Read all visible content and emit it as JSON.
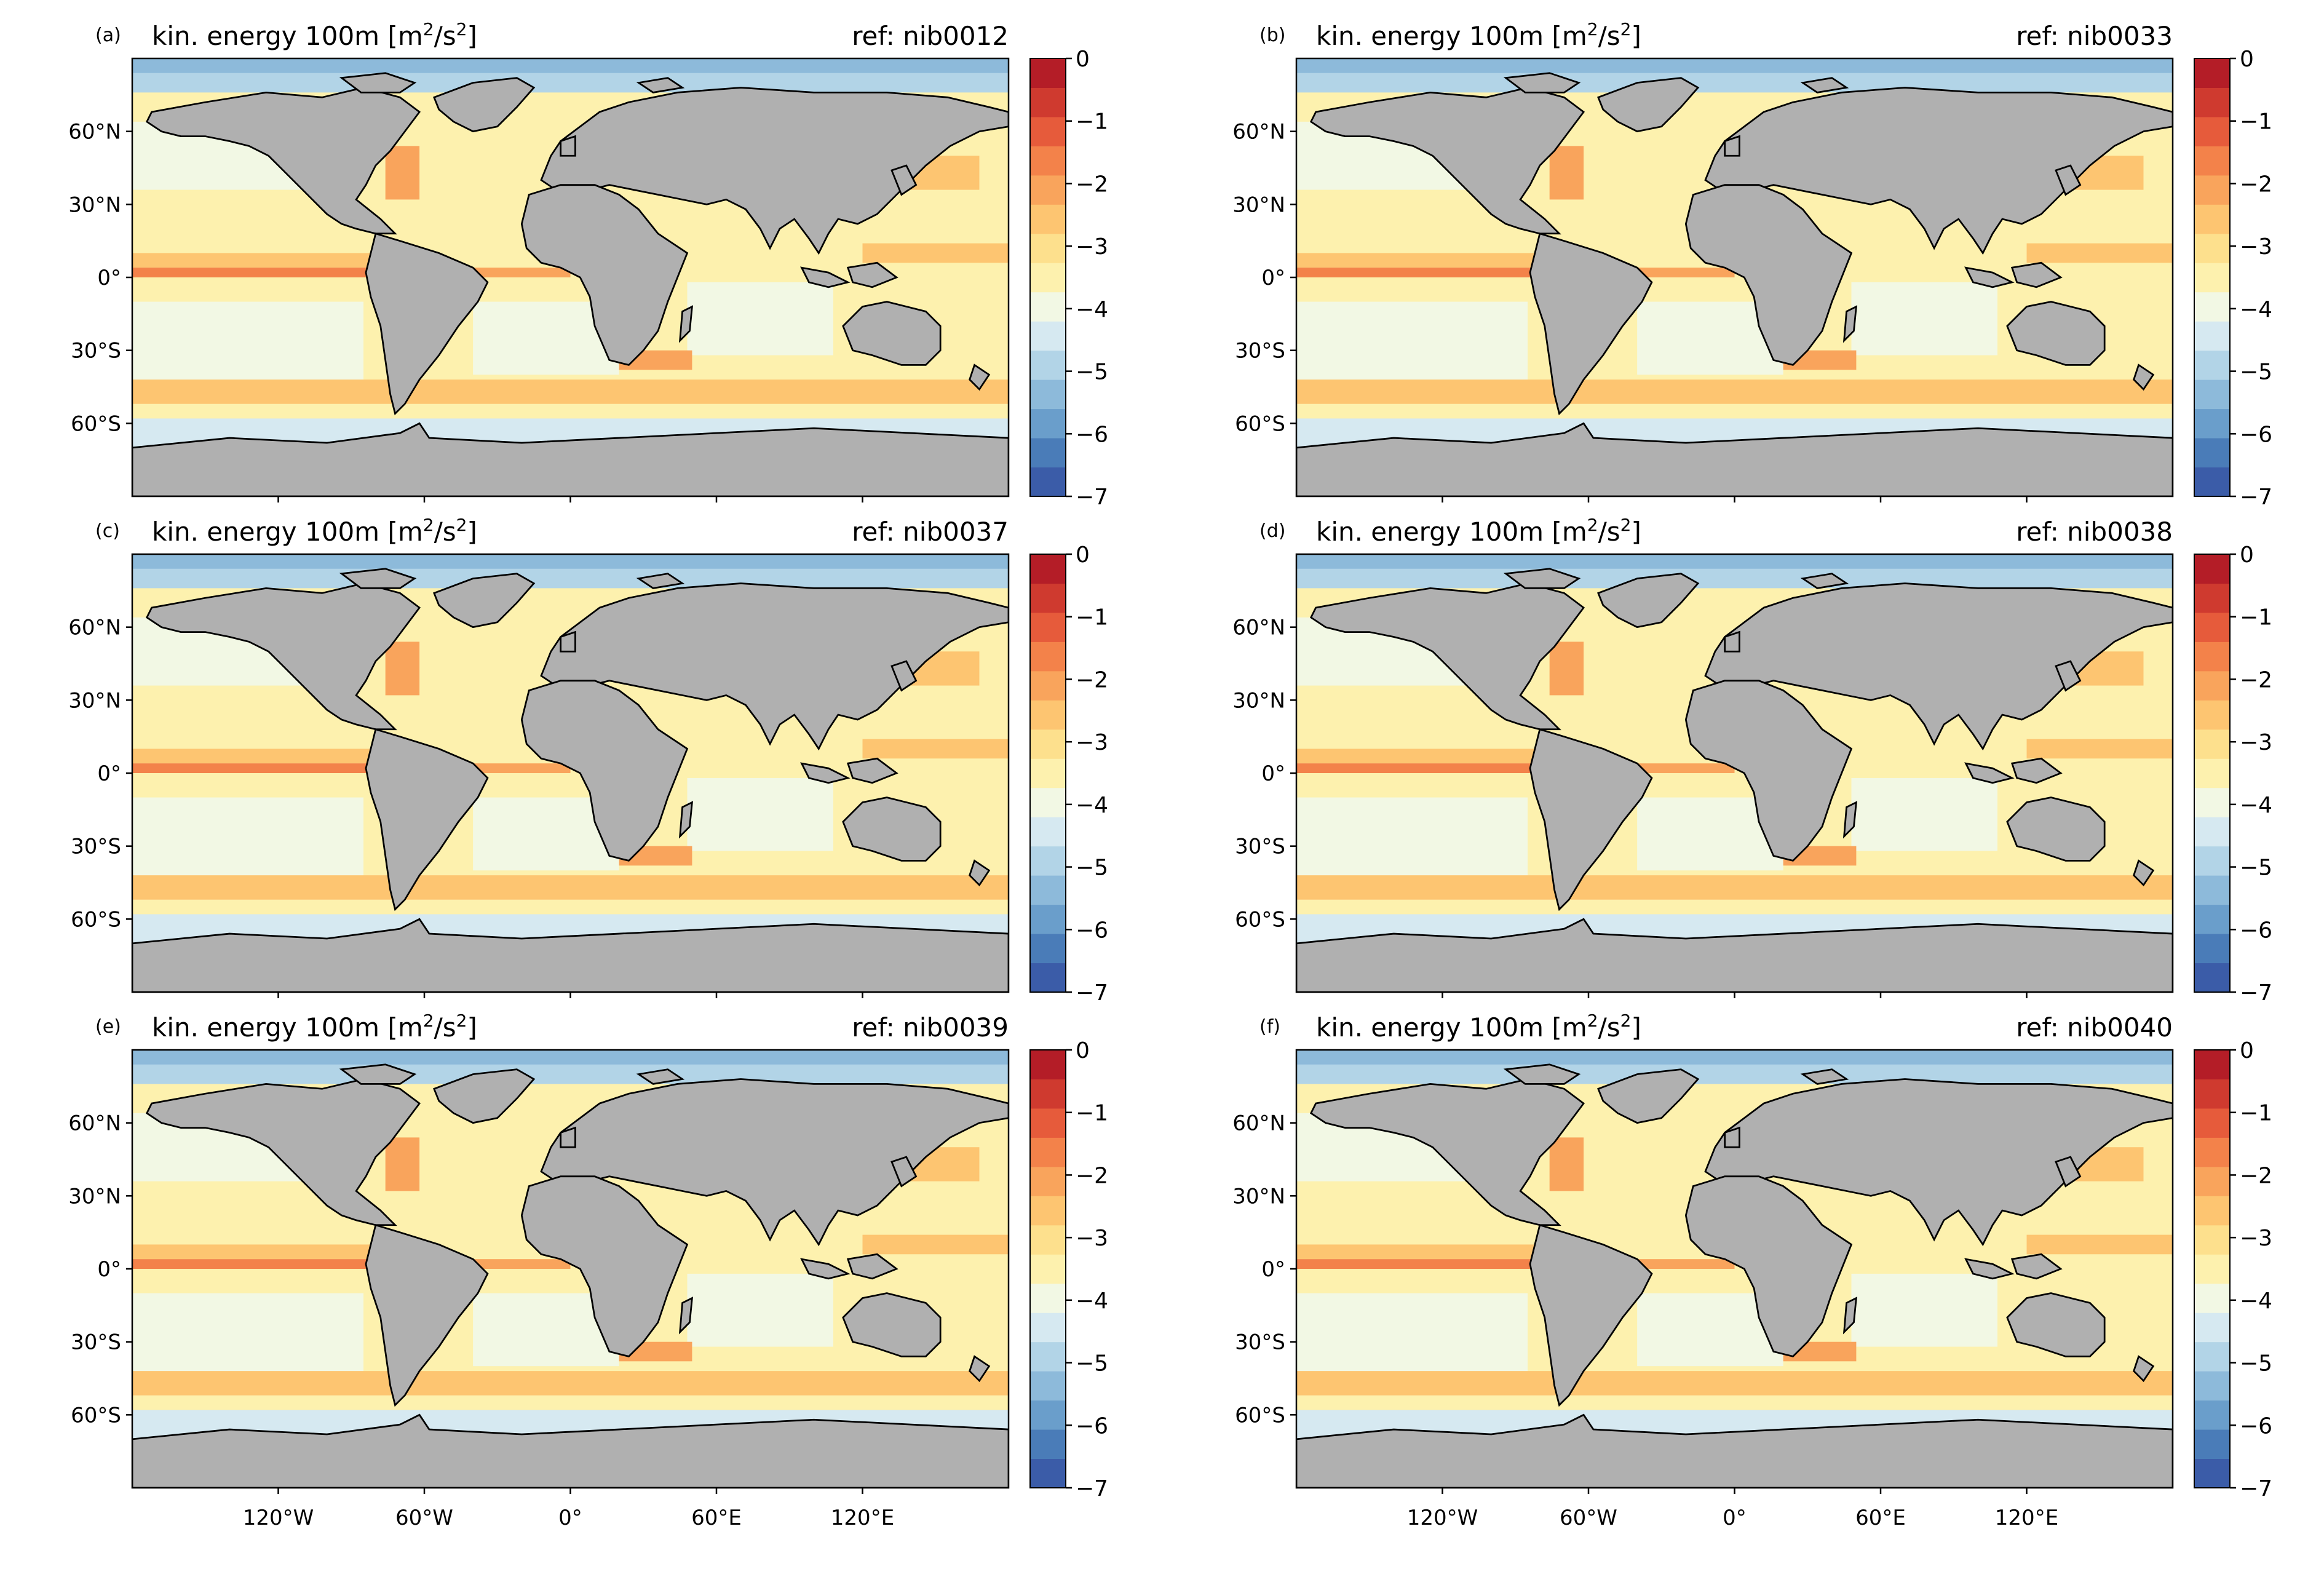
{
  "figure": {
    "panels": [
      {
        "letter": "(a)",
        "title_main": "kin. energy 100m [m",
        "title_sup1": "2",
        "title_mid": "/s",
        "title_sup2": "2",
        "title_end": "]",
        "ref": "ref: nib0012"
      },
      {
        "letter": "(b)",
        "title_main": "kin. energy 100m [m",
        "title_sup1": "2",
        "title_mid": "/s",
        "title_sup2": "2",
        "title_end": "]",
        "ref": "ref: nib0033"
      },
      {
        "letter": "(c)",
        "title_main": "kin. energy 100m [m",
        "title_sup1": "2",
        "title_mid": "/s",
        "title_sup2": "2",
        "title_end": "]",
        "ref": "ref: nib0037"
      },
      {
        "letter": "(d)",
        "title_main": "kin. energy 100m [m",
        "title_sup1": "2",
        "title_mid": "/s",
        "title_sup2": "2",
        "title_end": "]",
        "ref": "ref: nib0038"
      },
      {
        "letter": "(e)",
        "title_main": "kin. energy 100m [m",
        "title_sup1": "2",
        "title_mid": "/s",
        "title_sup2": "2",
        "title_end": "]",
        "ref": "ref: nib0039"
      },
      {
        "letter": "(f)",
        "title_main": "kin. energy 100m [m",
        "title_sup1": "2",
        "title_mid": "/s",
        "title_sup2": "2",
        "title_end": "]",
        "ref": "ref: nib0040"
      }
    ],
    "lat_ticks": [
      {
        "label": "60°N",
        "value": 60
      },
      {
        "label": "30°N",
        "value": 30
      },
      {
        "label": "0°",
        "value": 0
      },
      {
        "label": "30°S",
        "value": -30
      },
      {
        "label": "60°S",
        "value": -60
      }
    ],
    "lon_ticks": [
      {
        "label": "120°W",
        "value": -120
      },
      {
        "label": "60°W",
        "value": -60
      },
      {
        "label": "0°",
        "value": 0
      },
      {
        "label": "60°E",
        "value": 60
      },
      {
        "label": "120°E",
        "value": 120
      }
    ],
    "colorbar": {
      "min": -7,
      "max": 0,
      "ticks": [
        {
          "label": "0",
          "value": 0
        },
        {
          "label": "−1",
          "value": -1
        },
        {
          "label": "−2",
          "value": -2
        },
        {
          "label": "−3",
          "value": -3
        },
        {
          "label": "−4",
          "value": -4
        },
        {
          "label": "−5",
          "value": -5
        },
        {
          "label": "−6",
          "value": -6
        },
        {
          "label": "−7",
          "value": -7
        }
      ],
      "colors": [
        "#3b5ca8",
        "#4a7cb8",
        "#6a9ecb",
        "#8dbada",
        "#b2d4e7",
        "#d6e9f1",
        "#f2f8e4",
        "#fdf1ae",
        "#fde08d",
        "#fdc571",
        "#f9a45c",
        "#f3824a",
        "#e65b3b",
        "#cf3a2f",
        "#b41d27"
      ]
    },
    "colors": {
      "land": "#b0b0b0",
      "coast": "#000000"
    }
  }
}
